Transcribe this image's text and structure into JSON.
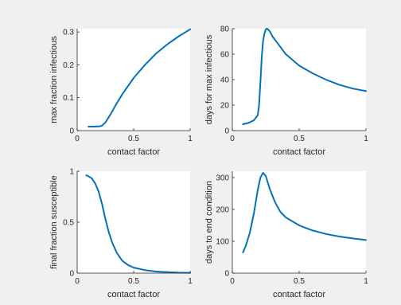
{
  "figure": {
    "background": "#f0f0f0",
    "line_color": "#0072bd"
  },
  "chart_data": [
    {
      "type": "line",
      "xlabel": "contact factor",
      "ylabel": "max fraction infectious",
      "xlim": [
        0,
        1
      ],
      "ylim": [
        0,
        0.31
      ],
      "xticks": [
        0,
        0.5,
        1
      ],
      "xtick_labels": [
        "0",
        "0.5",
        "1"
      ],
      "yticks": [
        0,
        0.1,
        0.2,
        0.3
      ],
      "ytick_labels": [
        "0",
        "0.1",
        "0.2",
        "0.3"
      ],
      "series": [
        {
          "x": [
            0.1,
            0.15,
            0.2,
            0.22,
            0.25,
            0.3,
            0.35,
            0.4,
            0.5,
            0.6,
            0.7,
            0.8,
            0.9,
            1.0
          ],
          "y": [
            0.012,
            0.012,
            0.013,
            0.015,
            0.025,
            0.052,
            0.083,
            0.111,
            0.16,
            0.2,
            0.235,
            0.263,
            0.287,
            0.308
          ]
        }
      ]
    },
    {
      "type": "line",
      "xlabel": "contact factor",
      "ylabel": "days for max infectious",
      "xlim": [
        0,
        1
      ],
      "ylim": [
        0,
        80
      ],
      "xticks": [
        0,
        0.5,
        1
      ],
      "xtick_labels": [
        "0",
        "0.5",
        "1"
      ],
      "yticks": [
        0,
        20,
        40,
        60,
        80
      ],
      "ytick_labels": [
        "0",
        "20",
        "40",
        "60",
        "80"
      ],
      "series": [
        {
          "x": [
            0.08,
            0.12,
            0.16,
            0.19,
            0.2,
            0.21,
            0.22,
            0.23,
            0.24,
            0.25,
            0.26,
            0.28,
            0.3,
            0.35,
            0.4,
            0.5,
            0.6,
            0.7,
            0.8,
            0.9,
            1.0
          ],
          "y": [
            5,
            6,
            8,
            12,
            20,
            38,
            58,
            70,
            76,
            79.5,
            80,
            78,
            74,
            67,
            60,
            51,
            45,
            40,
            36,
            33,
            31
          ]
        }
      ]
    },
    {
      "type": "line",
      "xlabel": "contact factor",
      "ylabel": "final fraction susceptible",
      "xlim": [
        0,
        1
      ],
      "ylim": [
        0,
        1
      ],
      "xticks": [
        0,
        0.5,
        1
      ],
      "xtick_labels": [
        "0",
        "0.5",
        "1"
      ],
      "yticks": [
        0,
        0.5,
        1
      ],
      "ytick_labels": [
        "0",
        "0.5",
        "1"
      ],
      "series": [
        {
          "x": [
            0.08,
            0.1,
            0.13,
            0.16,
            0.19,
            0.22,
            0.25,
            0.28,
            0.31,
            0.35,
            0.4,
            0.45,
            0.5,
            0.6,
            0.7,
            0.8,
            0.9,
            1.0
          ],
          "y": [
            0.96,
            0.95,
            0.93,
            0.88,
            0.8,
            0.68,
            0.53,
            0.4,
            0.3,
            0.2,
            0.12,
            0.08,
            0.055,
            0.03,
            0.016,
            0.009,
            0.005,
            0.003
          ]
        }
      ]
    },
    {
      "type": "line",
      "xlabel": "contact factor",
      "ylabel": "days to end condition",
      "xlim": [
        0,
        1
      ],
      "ylim": [
        0,
        320
      ],
      "xticks": [
        0,
        0.5,
        1
      ],
      "xtick_labels": [
        "0",
        "0.5",
        "1"
      ],
      "yticks": [
        0,
        100,
        200,
        300
      ],
      "ytick_labels": [
        "0",
        "100",
        "200",
        "300"
      ],
      "series": [
        {
          "x": [
            0.08,
            0.1,
            0.13,
            0.16,
            0.19,
            0.21,
            0.23,
            0.25,
            0.28,
            0.32,
            0.36,
            0.4,
            0.5,
            0.6,
            0.7,
            0.8,
            0.9,
            1.0
          ],
          "y": [
            65,
            85,
            125,
            185,
            260,
            300,
            315,
            305,
            265,
            222,
            192,
            175,
            150,
            134,
            123,
            115,
            109,
            104
          ]
        }
      ]
    }
  ]
}
